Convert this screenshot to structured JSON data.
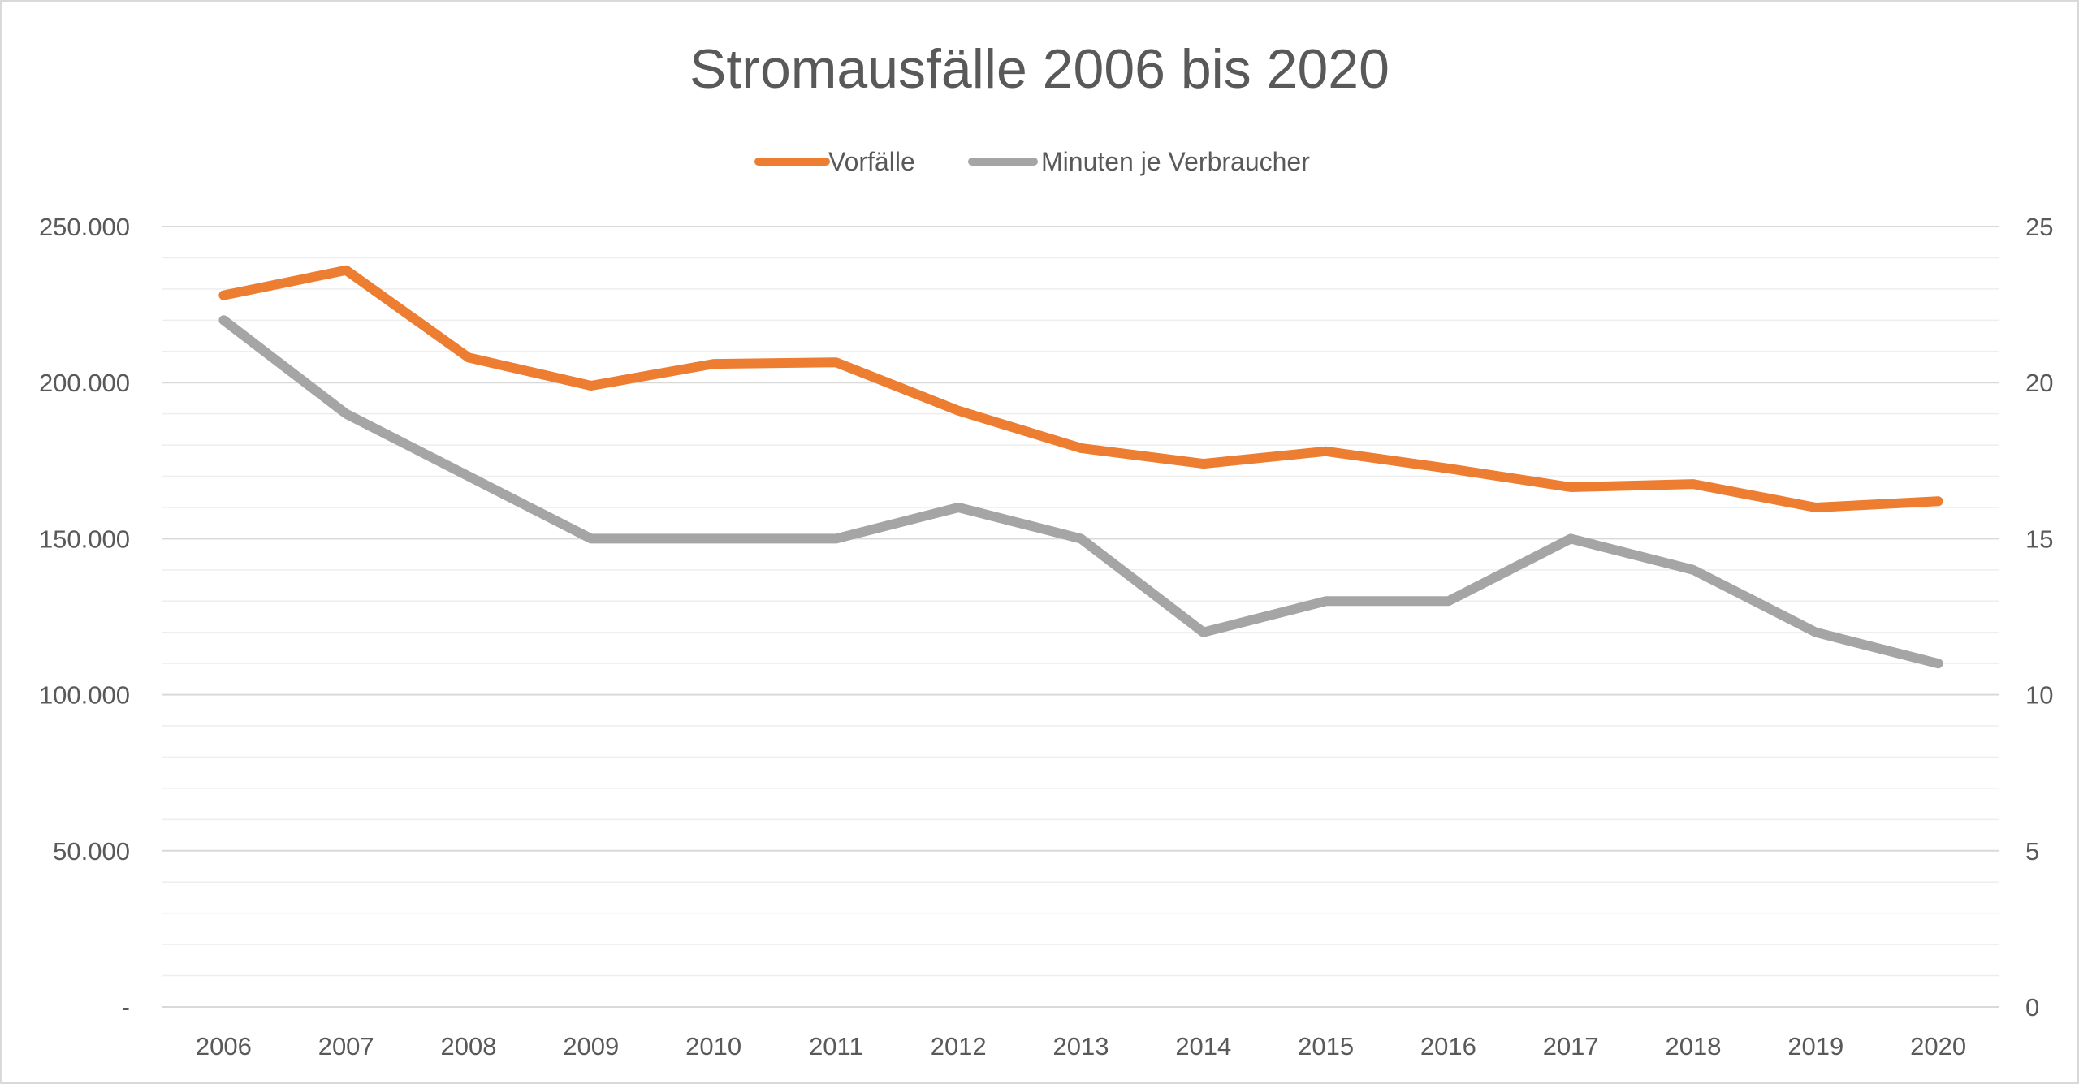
{
  "chart_data": {
    "type": "line",
    "title": "Stromausfälle 2006 bis 2020",
    "categories": [
      "2006",
      "2007",
      "2008",
      "2009",
      "2010",
      "2011",
      "2012",
      "2013",
      "2014",
      "2015",
      "2016",
      "2017",
      "2018",
      "2019",
      "2020"
    ],
    "series": [
      {
        "name": "Vorfälle",
        "axis": "left",
        "color": "#ED7D31",
        "values": [
          228000,
          236000,
          208000,
          199000,
          206000,
          206500,
          191000,
          179000,
          174000,
          178000,
          172500,
          166500,
          167500,
          160000,
          162000
        ]
      },
      {
        "name": "Minuten je Verbraucher",
        "axis": "right",
        "color": "#A5A5A5",
        "values": [
          22,
          19,
          17,
          15,
          15,
          15,
          16,
          15,
          12,
          13,
          13,
          15,
          14,
          12,
          11
        ]
      }
    ],
    "y_left": {
      "min": 0,
      "max": 250000,
      "ticks": [
        {
          "value": 0,
          "label": "-"
        },
        {
          "value": 50000,
          "label": "50.000"
        },
        {
          "value": 100000,
          "label": "100.000"
        },
        {
          "value": 150000,
          "label": "150.000"
        },
        {
          "value": 200000,
          "label": "200.000"
        },
        {
          "value": 250000,
          "label": "250.000"
        }
      ]
    },
    "y_right": {
      "min": 0,
      "max": 25,
      "ticks": [
        {
          "value": 0,
          "label": "0"
        },
        {
          "value": 5,
          "label": "5"
        },
        {
          "value": 10,
          "label": "10"
        },
        {
          "value": 15,
          "label": "15"
        },
        {
          "value": 20,
          "label": "20"
        },
        {
          "value": 25,
          "label": "25"
        }
      ]
    },
    "minor_grid_step": 10000,
    "grid": true,
    "legend": "top-center",
    "colors": {
      "major_grid": "#d9d9d9",
      "minor_grid": "#eeeeee",
      "text": "#595959"
    }
  }
}
